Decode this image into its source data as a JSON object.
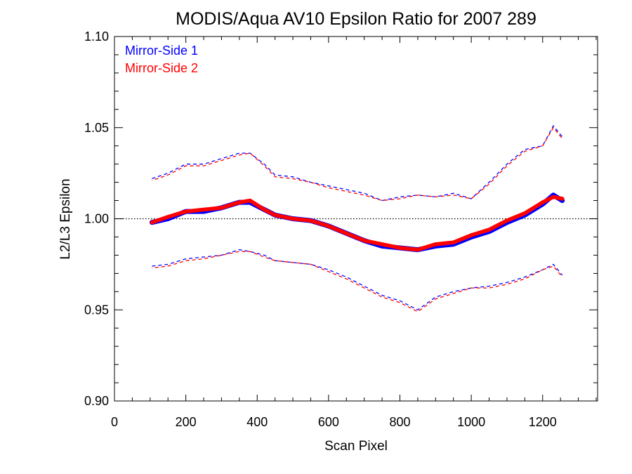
{
  "chart_data": {
    "type": "line",
    "title": "MODIS/Aqua AV10 Epsilon Ratio for 2007 289",
    "xlabel": "Scan Pixel",
    "ylabel": "L2/L3 Epsilon",
    "xlim": [
      0,
      1354
    ],
    "ylim": [
      0.9,
      1.1
    ],
    "x_ticks": [
      "0",
      "200",
      "400",
      "600",
      "800",
      "1000",
      "1200"
    ],
    "y_ticks": [
      "0.90",
      "0.95",
      "1.00",
      "1.05",
      "1.10"
    ],
    "reference_line": 1.0,
    "legend_position": "top-left",
    "colors": {
      "ms1": "#0000ff",
      "ms2": "#ff0000"
    },
    "x": [
      105,
      150,
      200,
      250,
      300,
      350,
      380,
      420,
      450,
      500,
      550,
      600,
      650,
      700,
      750,
      800,
      850,
      900,
      950,
      1000,
      1050,
      1100,
      1150,
      1200,
      1230,
      1255
    ],
    "series": [
      {
        "name": "Mirror-Side 1",
        "values": [
          0.998,
          1.0,
          1.004,
          1.004,
          1.006,
          1.009,
          1.009,
          1.005,
          1.002,
          1.0,
          0.999,
          0.996,
          0.992,
          0.988,
          0.985,
          0.984,
          0.983,
          0.985,
          0.986,
          0.99,
          0.993,
          0.998,
          1.002,
          1.008,
          1.013,
          1.01
        ],
        "upper": [
          1.022,
          1.025,
          1.03,
          1.03,
          1.033,
          1.036,
          1.036,
          1.03,
          1.024,
          1.023,
          1.02,
          1.018,
          1.016,
          1.014,
          1.01,
          1.012,
          1.013,
          1.012,
          1.014,
          1.011,
          1.02,
          1.03,
          1.038,
          1.04,
          1.051,
          1.045
        ],
        "lower": [
          0.974,
          0.975,
          0.978,
          0.979,
          0.98,
          0.983,
          0.982,
          0.98,
          0.977,
          0.976,
          0.975,
          0.972,
          0.968,
          0.963,
          0.958,
          0.955,
          0.95,
          0.957,
          0.96,
          0.962,
          0.963,
          0.965,
          0.968,
          0.972,
          0.975,
          0.969
        ]
      },
      {
        "name": "Mirror-Side 2",
        "values": [
          0.998,
          1.001,
          1.004,
          1.005,
          1.006,
          1.009,
          1.01,
          1.005,
          1.002,
          1.0,
          0.999,
          0.996,
          0.992,
          0.988,
          0.986,
          0.984,
          0.983,
          0.986,
          0.987,
          0.991,
          0.994,
          0.999,
          1.003,
          1.009,
          1.012,
          1.011
        ],
        "upper": [
          1.021,
          1.024,
          1.029,
          1.029,
          1.032,
          1.035,
          1.036,
          1.029,
          1.023,
          1.022,
          1.02,
          1.017,
          1.015,
          1.013,
          1.01,
          1.011,
          1.013,
          1.012,
          1.013,
          1.011,
          1.019,
          1.029,
          1.037,
          1.04,
          1.05,
          1.044
        ],
        "lower": [
          0.973,
          0.974,
          0.977,
          0.978,
          0.98,
          0.982,
          0.982,
          0.979,
          0.977,
          0.976,
          0.975,
          0.971,
          0.967,
          0.962,
          0.957,
          0.954,
          0.949,
          0.956,
          0.959,
          0.962,
          0.962,
          0.964,
          0.967,
          0.972,
          0.974,
          0.968
        ]
      }
    ]
  }
}
